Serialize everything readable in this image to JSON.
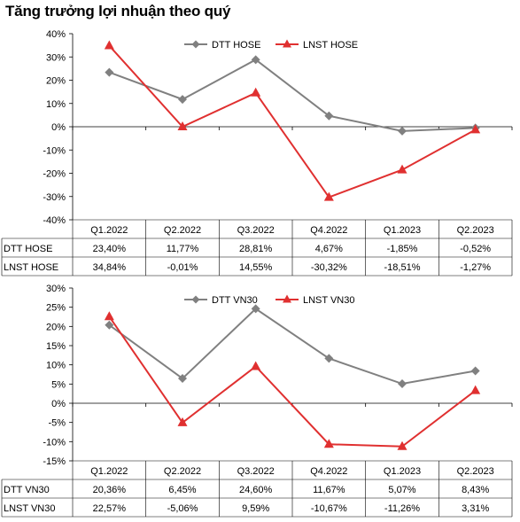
{
  "page_title": "Tăng trưởng lợi nhuận theo quý",
  "chart_data": [
    {
      "type": "line",
      "title": "",
      "categories": [
        "Q1.2022",
        "Q2.2022",
        "Q3.2022",
        "Q4.2022",
        "Q1.2023",
        "Q2.2023"
      ],
      "yticks": [
        "40%",
        "30%",
        "20%",
        "10%",
        "0%",
        "-10%",
        "-20%",
        "-30%",
        "-40%"
      ],
      "ylim": [
        -40,
        40
      ],
      "ystep": 10,
      "legend_position": "top",
      "grid": false,
      "series": [
        {
          "name": "DTT HOSE",
          "color": "#808080",
          "marker": "diamond",
          "values": [
            23.4,
            11.77,
            28.81,
            4.67,
            -1.85,
            -0.52
          ],
          "labels": [
            "23,40%",
            "11,77%",
            "28,81%",
            "4,67%",
            "-1,85%",
            "-0,52%"
          ]
        },
        {
          "name": "LNST HOSE",
          "color": "#e03030",
          "marker": "triangle",
          "values": [
            34.84,
            -0.01,
            14.55,
            -30.32,
            -18.51,
            -1.27
          ],
          "labels": [
            "34,84%",
            "-0,01%",
            "14,55%",
            "-30,32%",
            "-18,51%",
            "-1,27%"
          ]
        }
      ]
    },
    {
      "type": "line",
      "title": "",
      "categories": [
        "Q1.2022",
        "Q2.2022",
        "Q3.2022",
        "Q4.2022",
        "Q1.2023",
        "Q2.2023"
      ],
      "yticks": [
        "30%",
        "25%",
        "20%",
        "15%",
        "10%",
        "5%",
        "0%",
        "-5%",
        "-10%",
        "-15%"
      ],
      "ylim": [
        -15,
        30
      ],
      "ystep": 5,
      "legend_position": "top",
      "grid": false,
      "series": [
        {
          "name": "DTT VN30",
          "color": "#808080",
          "marker": "diamond",
          "values": [
            20.36,
            6.45,
            24.6,
            11.67,
            5.07,
            8.43
          ],
          "labels": [
            "20,36%",
            "6,45%",
            "24,60%",
            "11,67%",
            "5,07%",
            "8,43%"
          ]
        },
        {
          "name": "LNST VN30",
          "color": "#e03030",
          "marker": "triangle",
          "values": [
            22.57,
            -5.06,
            9.59,
            -10.67,
            -11.26,
            3.31
          ],
          "labels": [
            "22,57%",
            "-5,06%",
            "9,59%",
            "-10,67%",
            "-11,26%",
            "3,31%"
          ]
        }
      ]
    }
  ]
}
